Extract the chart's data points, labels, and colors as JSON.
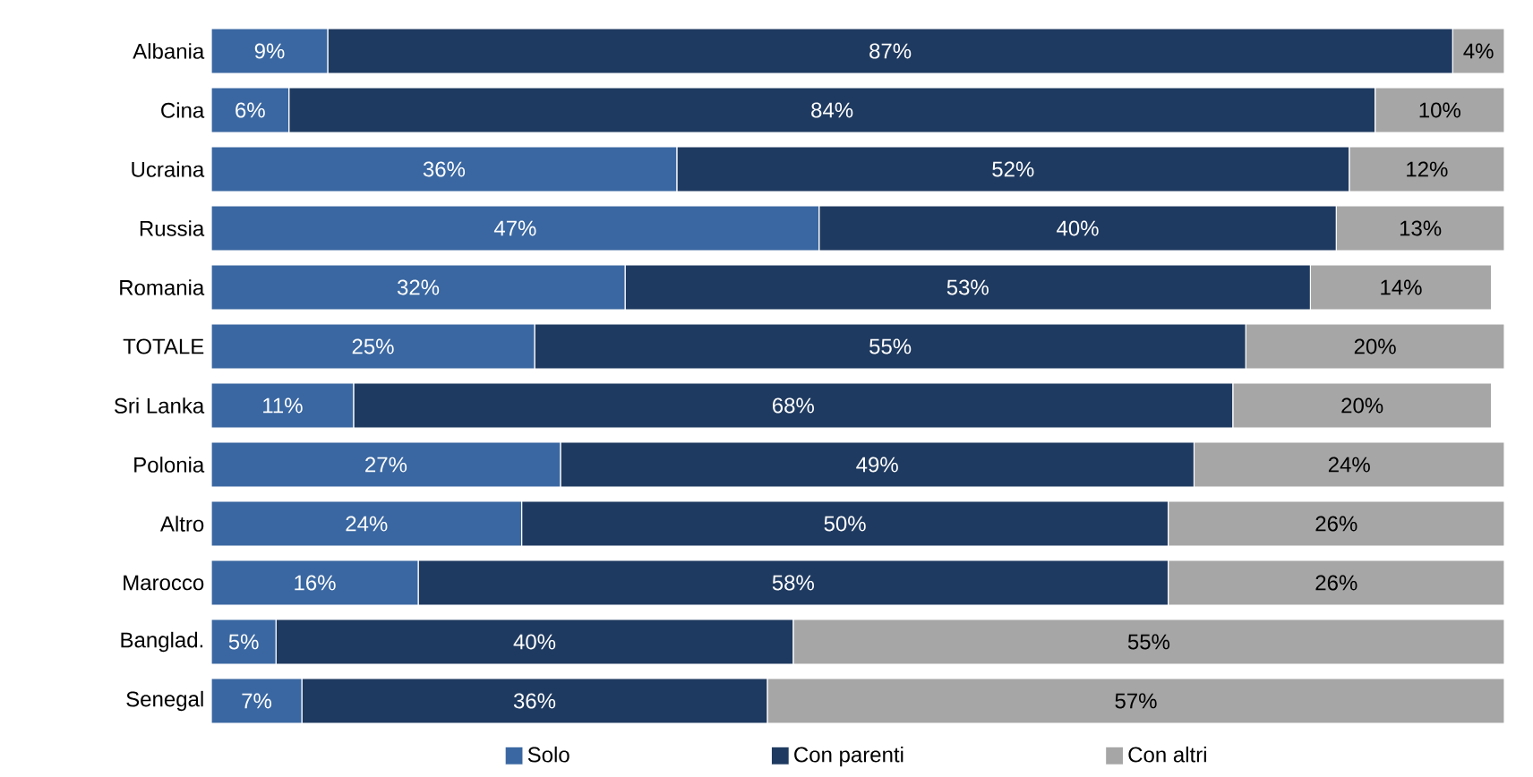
{
  "chart_data": {
    "type": "bar",
    "orientation": "horizontal",
    "stacked": true,
    "categories": [
      "Albania",
      "Cina",
      "Ucraina",
      "Russia",
      "Romania",
      "TOTALE",
      "Sri Lanka",
      "Polonia",
      "Altro",
      "Marocco",
      "Banglad.",
      "Senegal"
    ],
    "tick_labels": "y",
    "legend": "bottom",
    "series": [
      {
        "name": "Solo",
        "color": "#3a67a1",
        "values": [
          9,
          6,
          36,
          47,
          32,
          25,
          11,
          27,
          24,
          16,
          5,
          7
        ],
        "value_labels": [
          "9%",
          "6%",
          "36%",
          "47%",
          "32%",
          "25%",
          "11%",
          "27%",
          "24%",
          "16%",
          "5%",
          "7%"
        ]
      },
      {
        "name": "Con parenti",
        "color": "#1f3a60",
        "values": [
          87,
          84,
          52,
          40,
          53,
          55,
          68,
          49,
          50,
          58,
          40,
          36
        ],
        "value_labels": [
          "87%",
          "84%",
          "52%",
          "40%",
          "53%",
          "55%",
          "68%",
          "49%",
          "50%",
          "58%",
          "40%",
          "36%"
        ]
      },
      {
        "name": "Con altri",
        "color": "#a6a6a6",
        "values": [
          4,
          10,
          12,
          13,
          14,
          20,
          20,
          24,
          26,
          26,
          55,
          57
        ],
        "value_labels": [
          "4%",
          "10%",
          "12%",
          "13%",
          "14%",
          "20%",
          "20%",
          "24%",
          "26%",
          "26%",
          "55%",
          "57%"
        ]
      }
    ]
  }
}
